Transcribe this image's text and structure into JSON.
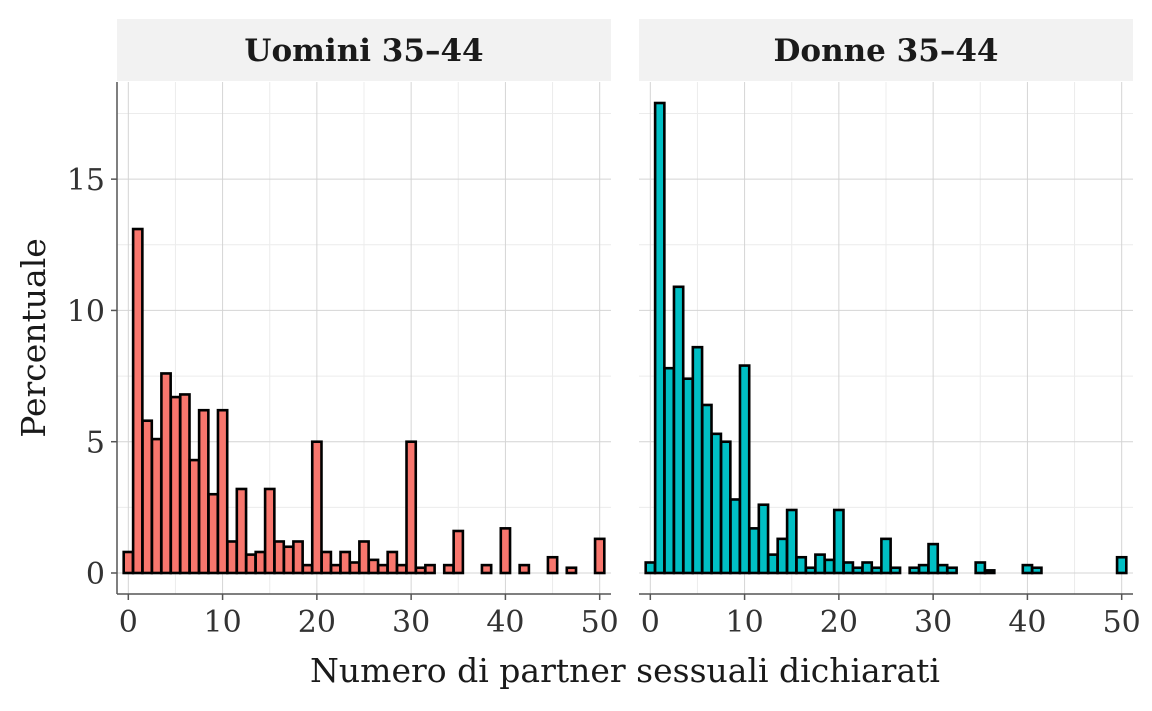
{
  "chart_data": {
    "type": "bar",
    "xlabel": "Numero di partner sessuali dichiarati",
    "ylabel": "Percentuale",
    "xlim": [
      -1.2,
      51.2
    ],
    "ylim": [
      -0.8,
      18.7
    ],
    "x_ticks": [
      0,
      10,
      20,
      30,
      40,
      50
    ],
    "y_ticks": [
      0,
      5,
      10,
      15
    ],
    "grid": true,
    "legend": "none",
    "panels": [
      {
        "title": "Uomini 35–44",
        "color": "#F8766D",
        "x": [
          0,
          1,
          2,
          3,
          4,
          5,
          6,
          7,
          8,
          9,
          10,
          11,
          12,
          13,
          14,
          15,
          16,
          17,
          18,
          19,
          20,
          21,
          22,
          23,
          24,
          25,
          26,
          27,
          28,
          29,
          30,
          31,
          32,
          34,
          35,
          38,
          40,
          42,
          45,
          47,
          50
        ],
        "values": [
          0.8,
          13.1,
          5.8,
          5.1,
          7.6,
          6.7,
          6.8,
          4.3,
          6.2,
          3.0,
          6.2,
          1.2,
          3.2,
          0.7,
          0.8,
          3.2,
          1.2,
          1.0,
          1.2,
          0.3,
          5.0,
          0.8,
          0.3,
          0.8,
          0.4,
          1.2,
          0.5,
          0.3,
          0.8,
          0.3,
          5.0,
          0.2,
          0.3,
          0.3,
          1.6,
          0.3,
          1.7,
          0.3,
          0.6,
          0.2,
          1.3
        ]
      },
      {
        "title": "Donne 35–44",
        "color": "#00BFC4",
        "x": [
          0,
          1,
          2,
          3,
          4,
          5,
          6,
          7,
          8,
          9,
          10,
          11,
          12,
          13,
          14,
          15,
          16,
          17,
          18,
          19,
          20,
          21,
          22,
          23,
          24,
          25,
          26,
          28,
          29,
          30,
          31,
          32,
          35,
          36,
          40,
          41,
          50
        ],
        "values": [
          0.4,
          17.9,
          7.8,
          10.9,
          7.4,
          8.6,
          6.4,
          5.3,
          5.0,
          2.8,
          7.9,
          1.7,
          2.6,
          0.7,
          1.3,
          2.4,
          0.6,
          0.2,
          0.7,
          0.5,
          2.4,
          0.4,
          0.2,
          0.4,
          0.2,
          1.3,
          0.2,
          0.2,
          0.3,
          1.1,
          0.3,
          0.2,
          0.4,
          0.1,
          0.3,
          0.2,
          0.6
        ]
      }
    ]
  }
}
